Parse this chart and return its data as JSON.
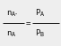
{
  "top_left_main": "n",
  "top_left_sub": "A",
  "top_left_dot": "·",
  "bot_left_main": "n",
  "bot_left_sub": "A",
  "top_right_main": "P",
  "top_right_sub": "A",
  "bot_right_main": "P",
  "bot_right_sub": "B",
  "equals": "=",
  "bg_color": "#eeeeee",
  "text_color": "#111111",
  "font_family": "monospace",
  "fs_main": 6.5,
  "fs_sub": 4.8,
  "fig_w": 0.68,
  "fig_h": 0.52,
  "dpi": 100
}
